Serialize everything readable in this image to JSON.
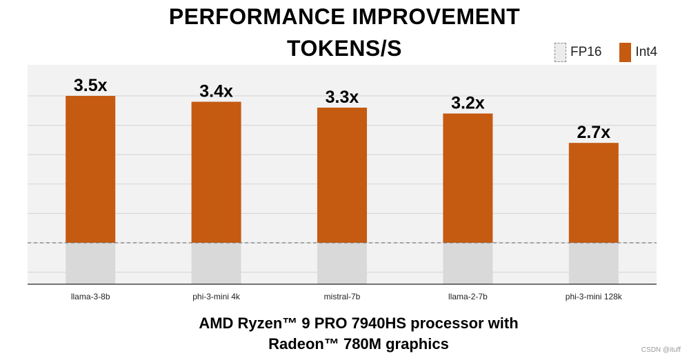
{
  "title_line1": "PERFORMANCE IMPROVEMENT",
  "title_line2": "TOKENS/S",
  "legend": [
    {
      "label": "FP16",
      "color": "#d9d9d9"
    },
    {
      "label": "Int4",
      "color": "#c55a11"
    }
  ],
  "chart_data": {
    "type": "bar",
    "categories": [
      "llama-3-8b",
      "phi-3-mini 4k",
      "mistral-7b",
      "llama-2-7b",
      "phi-3-mini 128k"
    ],
    "series": [
      {
        "name": "FP16",
        "values": [
          1,
          1,
          1,
          1,
          1
        ],
        "color": "#d9d9d9"
      },
      {
        "name": "Int4",
        "values": [
          3.5,
          3.4,
          3.3,
          3.2,
          2.7
        ],
        "color": "#c55a11"
      }
    ],
    "data_labels": [
      "3.5x",
      "3.4x",
      "3.3x",
      "3.2x",
      "2.7x"
    ],
    "baseline": 1,
    "ylim": [
      0,
      3.5
    ],
    "grid": true,
    "plot_background": "#f2f2f2"
  },
  "footer_line1": "AMD Ryzen™ 9 PRO 7940HS processor with",
  "footer_line2": "Radeon™ 780M graphics",
  "watermark": "CSDN @ituff"
}
